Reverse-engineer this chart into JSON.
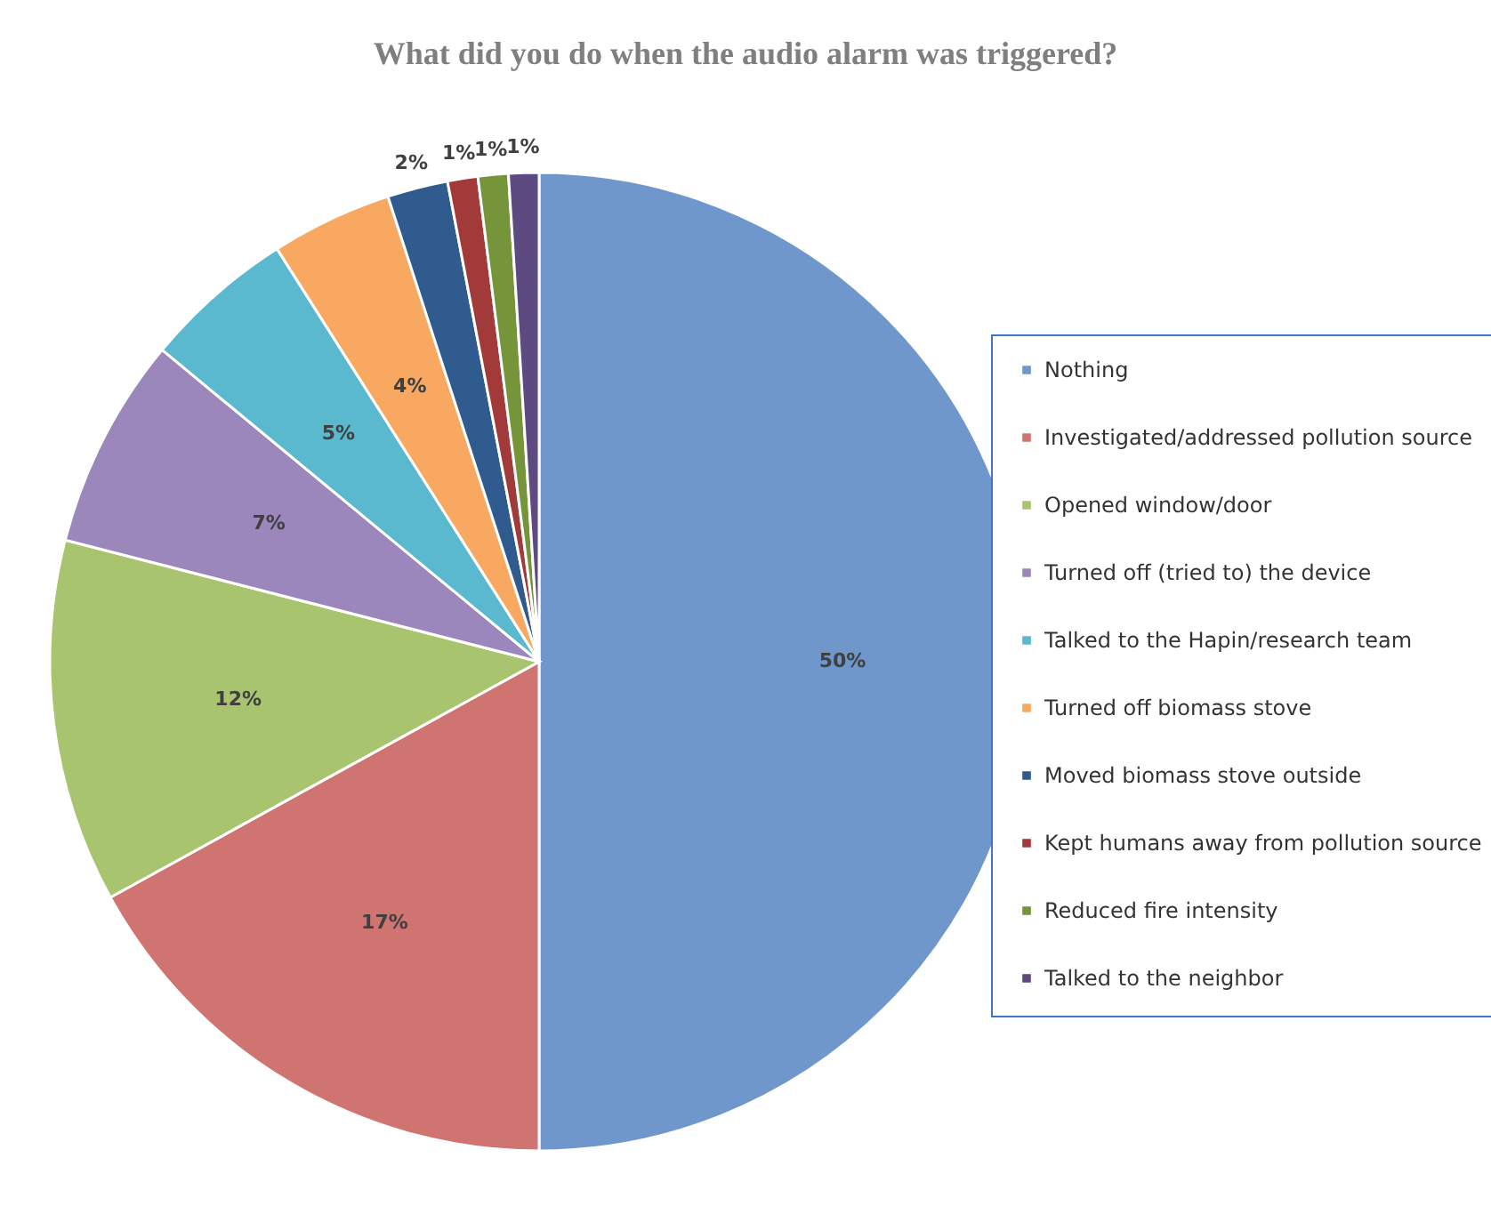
{
  "chart_data": {
    "type": "pie",
    "title": "What did you do when the audio alarm was triggered?",
    "categories": [
      "Nothing",
      "Investigated/addressed pollution source",
      "Opened window/door",
      "Turned off (tried to) the device",
      "Talked to the Hapin/research team",
      "Turned off biomass stove",
      "Moved biomass stove outside",
      "Kept humans away from pollution source",
      "Reduced fire intensity",
      "Talked to the neighbor"
    ],
    "values": [
      50,
      17,
      12,
      7,
      5,
      4,
      2,
      1,
      1,
      1
    ],
    "value_labels": [
      "50%",
      "17%",
      "12%",
      "7%",
      "5%",
      "4%",
      "2%",
      "1%",
      "1%",
      "1%"
    ],
    "colors": [
      "#6f97cc",
      "#d07472",
      "#a9c46f",
      "#9b87bb",
      "#5ab8cf",
      "#f8a860",
      "#2f5b8e",
      "#a13a38",
      "#76953b",
      "#5d4a80"
    ],
    "legend": "right"
  }
}
